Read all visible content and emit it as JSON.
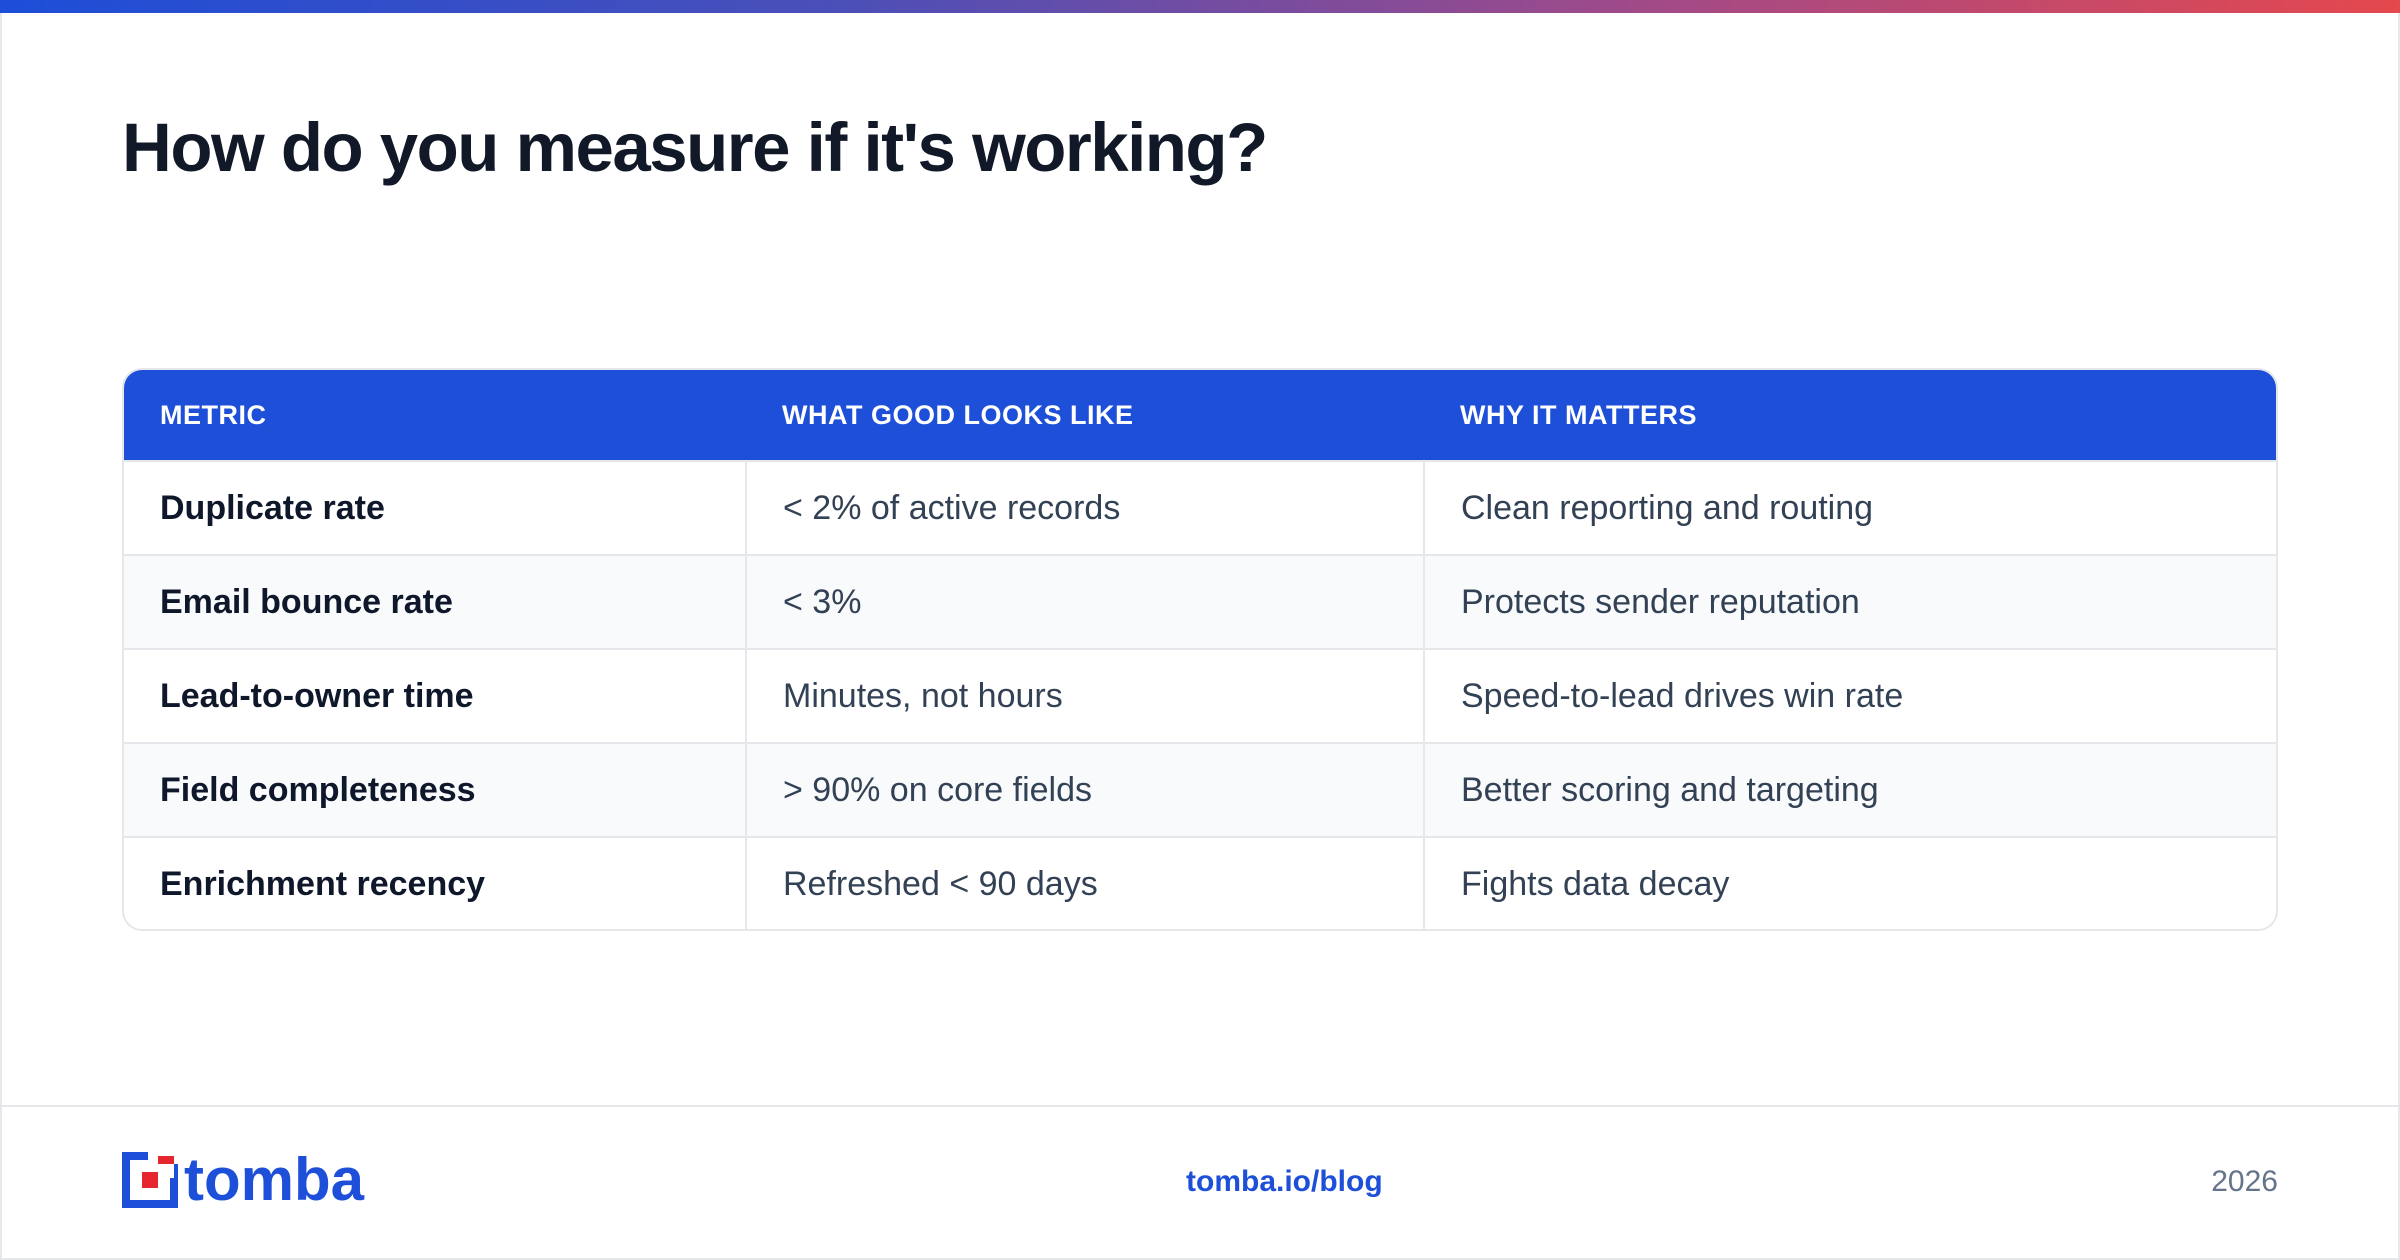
{
  "title": "How do you measure if it's working?",
  "table": {
    "headers": [
      "METRIC",
      "WHAT GOOD LOOKS LIKE",
      "WHY IT MATTERS"
    ],
    "rows": [
      [
        "Duplicate rate",
        "< 2% of active records",
        "Clean reporting and routing"
      ],
      [
        "Email bounce rate",
        "< 3%",
        "Protects sender reputation"
      ],
      [
        "Lead-to-owner time",
        "Minutes, not hours",
        "Speed-to-lead drives win rate"
      ],
      [
        "Field completeness",
        "> 90% on core fields",
        "Better scoring and targeting"
      ],
      [
        "Enrichment recency",
        "Refreshed < 90 days",
        "Fights data decay"
      ]
    ]
  },
  "footer": {
    "logo_text": "tomba",
    "link": "tomba.io/blog",
    "year": "2026"
  },
  "colors": {
    "accent": "#1d4fd8",
    "logo_red": "#e5272d",
    "gradient_start": "#1d4ed8",
    "gradient_end": "#e5484d"
  },
  "icons": {
    "logo_mark": "tomba-logo-icon"
  }
}
